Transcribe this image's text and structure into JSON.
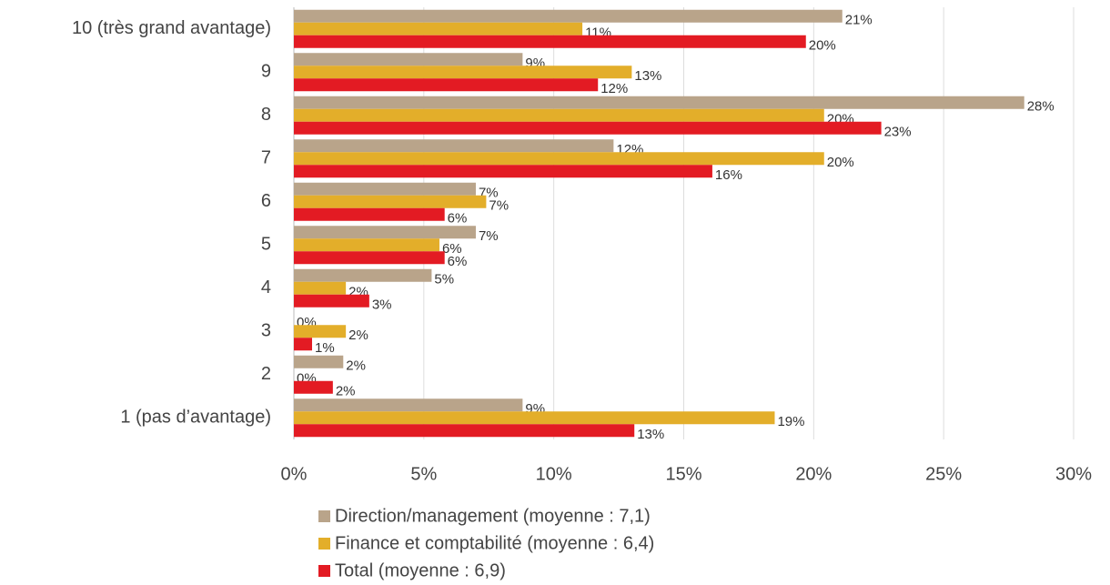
{
  "chart_data": {
    "type": "barh",
    "categories": [
      "10 (très grand avantage)",
      "9",
      "8",
      "7",
      "6",
      "5",
      "4",
      "3",
      "2",
      "1 (pas d’avantage)"
    ],
    "series": [
      {
        "name": "Direction/management (moyenne : 7,1)",
        "color": "#b9a48a",
        "values": [
          21.1,
          8.8,
          28.1,
          12.3,
          7.0,
          7.0,
          5.3,
          0,
          1.9,
          8.8
        ],
        "value_labels": [
          "21%",
          "9%",
          "28%",
          "12%",
          "7%",
          "7%",
          "5%",
          "0%",
          "2%",
          "9%"
        ]
      },
      {
        "name": "Finance et comptabilité (moyenne : 6,4)",
        "color": "#e3ae2a",
        "values": [
          11.1,
          13.0,
          20.4,
          20.4,
          7.4,
          5.6,
          2.0,
          2.0,
          0,
          18.5
        ],
        "value_labels": [
          "11%",
          "13%",
          "20%",
          "20%",
          "7%",
          "6%",
          "2%",
          "2%",
          "0%",
          "19%"
        ]
      },
      {
        "name": "Total (moyenne : 6,9)",
        "color": "#e31b23",
        "values": [
          19.7,
          11.7,
          22.6,
          16.1,
          5.8,
          5.8,
          2.9,
          0.7,
          1.5,
          13.1
        ],
        "value_labels": [
          "20%",
          "12%",
          "23%",
          "16%",
          "6%",
          "6%",
          "3%",
          "1%",
          "2%",
          "13%"
        ]
      }
    ],
    "xlim": [
      0,
      30
    ],
    "xticks": [
      {
        "value": 0,
        "label": "0%"
      },
      {
        "value": 5,
        "label": "5%"
      },
      {
        "value": 10,
        "label": "10%"
      },
      {
        "value": 15,
        "label": "15%"
      },
      {
        "value": 20,
        "label": "20%"
      },
      {
        "value": 25,
        "label": "25%"
      },
      {
        "value": 30,
        "label": "30%"
      }
    ],
    "grid": true,
    "legend": "bottom"
  }
}
